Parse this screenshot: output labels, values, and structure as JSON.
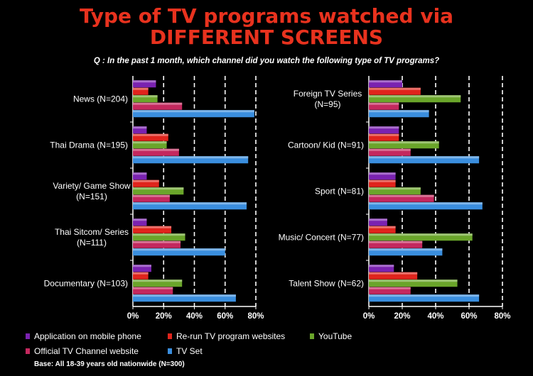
{
  "title": {
    "line1": "Type of TV programs watched via",
    "line2": "DIFFERENT SCREENS"
  },
  "question": "Q : In the past 1 month, which channel did you watch the following type of TV programs?",
  "base_note": "Base: All 18-39 years old nationwide (N=300)",
  "colors": {
    "Application on mobile phone": "#7a22b0",
    "Re-run TV program websites": "#e0241c",
    "YouTube": "#6aa52a",
    "Official TV Channel website": "#c4285e",
    "TV Set": "#3a8ede"
  },
  "legend": [
    {
      "label": "Application on mobile phone",
      "color": "#7a22b0"
    },
    {
      "label": "Re-run TV program websites",
      "color": "#e0241c"
    },
    {
      "label": "YouTube",
      "color": "#6aa52a"
    },
    {
      "label": "Official TV Channel website",
      "color": "#c4285e"
    },
    {
      "label": "TV Set",
      "color": "#3a8ede"
    }
  ],
  "chart_data": [
    {
      "type": "bar",
      "orientation": "horizontal",
      "categories": [
        "News (N=204)",
        "Thai Drama (N=195)",
        "Variety/ Game Show (N=151)",
        "Thai Sitcom/ Series (N=111)",
        "Documentary (N=103)"
      ],
      "series": [
        {
          "name": "Application on mobile phone",
          "values": [
            15,
            9,
            9,
            9,
            12
          ]
        },
        {
          "name": "Re-run TV program websites",
          "values": [
            10,
            23,
            17,
            25,
            10
          ]
        },
        {
          "name": "YouTube",
          "values": [
            16,
            22,
            33,
            34,
            32
          ]
        },
        {
          "name": "Official TV Channel website",
          "values": [
            32,
            30,
            24,
            31,
            26
          ]
        },
        {
          "name": "TV Set",
          "values": [
            79,
            75,
            74,
            60,
            67
          ]
        }
      ],
      "xlim": [
        0,
        80
      ],
      "ticks": [
        "0%",
        "20%",
        "40%",
        "60%",
        "80%"
      ],
      "grid": true
    },
    {
      "type": "bar",
      "orientation": "horizontal",
      "categories": [
        "Foreign TV Series (N=95)",
        "Cartoon/ Kid (N=91)",
        "Sport (N=81)",
        "Music/ Concert (N=77)",
        "Talent Show (N=62)"
      ],
      "series": [
        {
          "name": "Application on mobile phone",
          "values": [
            20,
            18,
            16,
            11,
            15
          ]
        },
        {
          "name": "Re-run TV program websites",
          "values": [
            31,
            18,
            16,
            16,
            29
          ]
        },
        {
          "name": "YouTube",
          "values": [
            55,
            42,
            31,
            62,
            53
          ]
        },
        {
          "name": "Official TV Channel website",
          "values": [
            18,
            25,
            39,
            32,
            25
          ]
        },
        {
          "name": "TV Set",
          "values": [
            36,
            66,
            68,
            44,
            66
          ]
        }
      ],
      "xlim": [
        0,
        80
      ],
      "ticks": [
        "0%",
        "20%",
        "40%",
        "60%",
        "80%"
      ],
      "grid": true
    }
  ]
}
